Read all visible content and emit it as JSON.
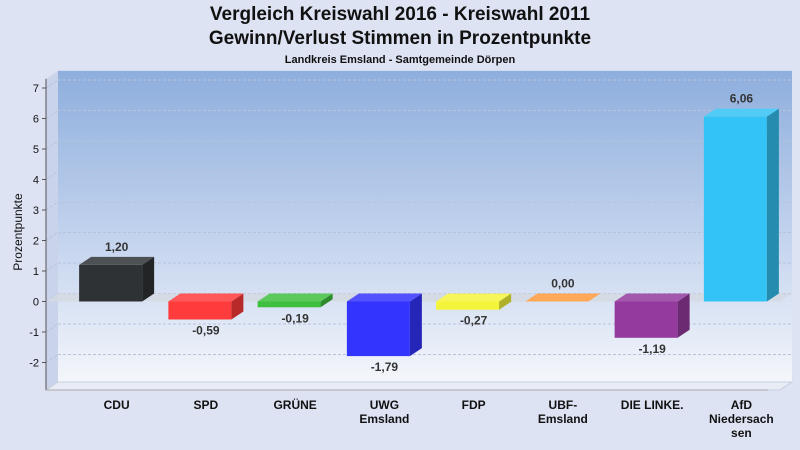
{
  "chart_data": {
    "type": "bar",
    "title": "Vergleich Kreiswahl 2016 - Kreiswahl 2011",
    "title2": "Gewinn/Verlust Stimmen in Prozentpunkte",
    "subtitle": "Landkreis Emsland - Samtgemeinde Dörpen",
    "ylabel": "Prozentpunkte",
    "ylim": [
      -2.9,
      7.3
    ],
    "yticks": [
      -2,
      -1,
      0,
      1,
      2,
      3,
      4,
      5,
      6,
      7
    ],
    "grid": true,
    "bars": [
      {
        "category": [
          "CDU"
        ],
        "value": 1.2,
        "label": "1,20",
        "color": "#2f3235"
      },
      {
        "category": [
          "SPD"
        ],
        "value": -0.59,
        "label": "-0,59",
        "color": "#ff3b3b"
      },
      {
        "category": [
          "GRÜNE"
        ],
        "value": -0.19,
        "label": "-0,19",
        "color": "#3fbf3f"
      },
      {
        "category": [
          "UWG",
          "Emsland"
        ],
        "value": -1.79,
        "label": "-1,79",
        "color": "#3434ff"
      },
      {
        "category": [
          "FDP"
        ],
        "value": -0.27,
        "label": "-0,27",
        "color": "#f4f43a"
      },
      {
        "category": [
          "UBF-",
          "Emsland"
        ],
        "value": 0.0,
        "label": "0,00",
        "color": "#ff9a3a"
      },
      {
        "category": [
          "DIE LINKE."
        ],
        "value": -1.19,
        "label": "-1,19",
        "color": "#943a9e"
      },
      {
        "category": [
          "AfD",
          "Niedersach",
          "sen"
        ],
        "value": 6.06,
        "label": "6,06",
        "color": "#33c3f5"
      }
    ]
  }
}
